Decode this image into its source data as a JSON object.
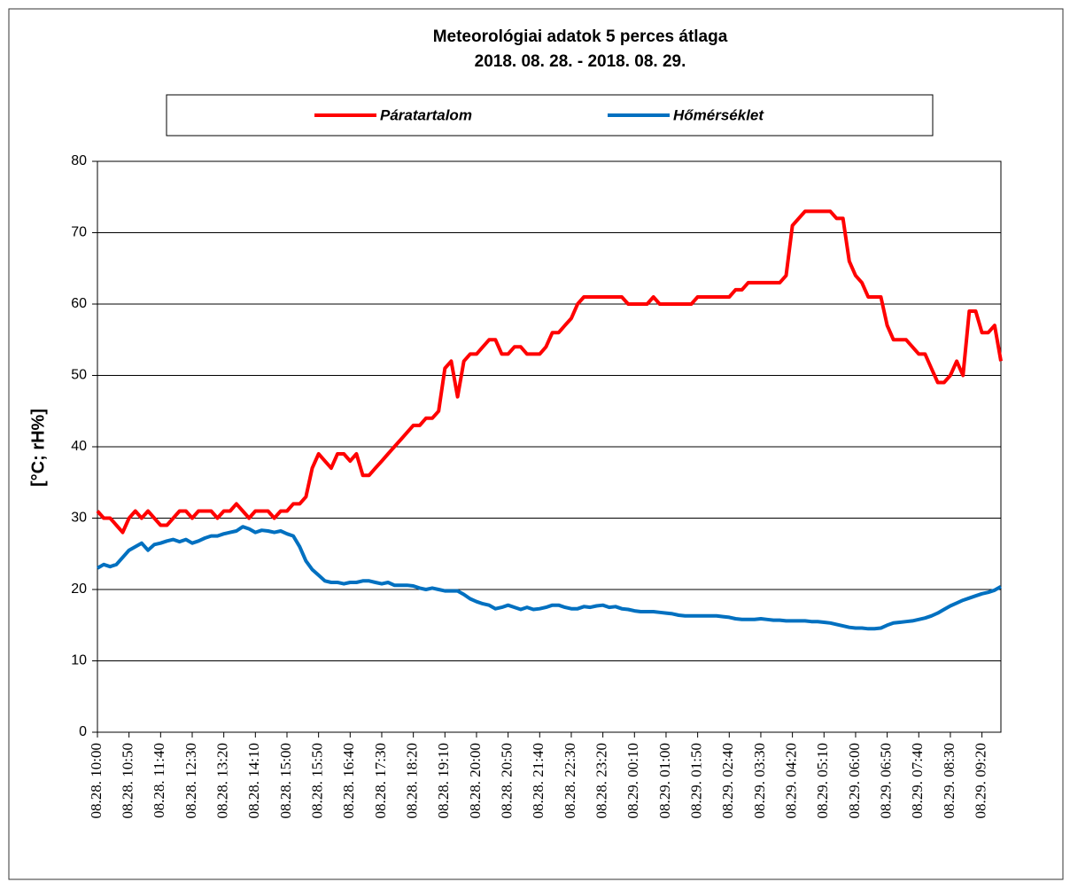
{
  "chart_data": {
    "type": "line",
    "title": "Meteorológiai adatok 5 perces átlaga",
    "subtitle": "2018. 08. 28. - 2018. 08. 29.",
    "y_label": "[°C; rH%]",
    "ylim": [
      0,
      80
    ],
    "yticks": [
      0,
      10,
      20,
      30,
      40,
      50,
      60,
      70,
      80
    ],
    "grid": true,
    "legend": "top",
    "categories": [
      "08.28. 10:00",
      null,
      null,
      null,
      null,
      "08.28. 10:50",
      null,
      null,
      null,
      null,
      "08.28. 11:40",
      null,
      null,
      null,
      null,
      "08.28. 12:30",
      null,
      null,
      null,
      null,
      "08.28. 13:20",
      null,
      null,
      null,
      null,
      "08.28. 14:10",
      null,
      null,
      null,
      null,
      "08.28. 15:00",
      null,
      null,
      null,
      null,
      "08.28. 15:50",
      null,
      null,
      null,
      null,
      "08.28. 16:40",
      null,
      null,
      null,
      null,
      "08.28. 17:30",
      null,
      null,
      null,
      null,
      "08.28. 18:20",
      null,
      null,
      null,
      null,
      "08.28. 19:10",
      null,
      null,
      null,
      null,
      "08.28. 20:00",
      null,
      null,
      null,
      null,
      "08.28. 20:50",
      null,
      null,
      null,
      null,
      "08.28. 21:40",
      null,
      null,
      null,
      null,
      "08.28. 22:30",
      null,
      null,
      null,
      null,
      "08.28. 23:20",
      null,
      null,
      null,
      null,
      "08.29. 00:10",
      null,
      null,
      null,
      null,
      "08.29. 01:00",
      null,
      null,
      null,
      null,
      "08.29. 01:50",
      null,
      null,
      null,
      null,
      "08.29. 02:40",
      null,
      null,
      null,
      null,
      "08.29. 03:30",
      null,
      null,
      null,
      null,
      "08.29. 04:20",
      null,
      null,
      null,
      null,
      "08.29. 05:10",
      null,
      null,
      null,
      null,
      "08.29. 06:00",
      null,
      null,
      null,
      null,
      "08.29. 06:50",
      null,
      null,
      null,
      null,
      "08.29. 07:40",
      null,
      null,
      null,
      null,
      "08.29. 08:30",
      null,
      null,
      null,
      null,
      "08.29. 09:20",
      null,
      null,
      null
    ],
    "series": [
      {
        "name": "Páratartalom",
        "color": "#ff0000",
        "values": [
          31,
          30,
          30,
          29,
          28,
          30,
          31,
          30,
          31,
          30,
          29,
          29,
          30,
          31,
          31,
          30,
          31,
          31,
          31,
          30,
          31,
          31,
          32,
          31,
          30,
          31,
          31,
          31,
          30,
          31,
          31,
          32,
          32,
          33,
          37,
          39,
          38,
          37,
          39,
          39,
          38,
          39,
          36,
          36,
          37,
          38,
          39,
          40,
          41,
          42,
          43,
          43,
          44,
          44,
          45,
          51,
          52,
          47,
          52,
          53,
          53,
          54,
          55,
          55,
          53,
          53,
          54,
          54,
          53,
          53,
          53,
          54,
          56,
          56,
          57,
          58,
          60,
          61,
          61,
          61,
          61,
          61,
          61,
          61,
          60,
          60,
          60,
          60,
          61,
          60,
          60,
          60,
          60,
          60,
          60,
          61,
          61,
          61,
          61,
          61,
          61,
          62,
          62,
          63,
          63,
          63,
          63,
          63,
          63,
          64,
          71,
          72,
          73,
          73,
          73,
          73,
          73,
          72,
          72,
          66,
          64,
          63,
          61,
          61,
          61,
          57,
          55,
          55,
          55,
          54,
          53,
          53,
          51,
          49,
          49,
          50,
          52,
          50,
          59,
          59,
          56,
          56,
          57,
          52
        ]
      },
      {
        "name": "Hőmérséklet",
        "color": "#0070c0",
        "values": [
          23,
          23.5,
          23.2,
          23.5,
          24.5,
          25.5,
          26,
          26.5,
          25.5,
          26.3,
          26.5,
          26.8,
          27,
          26.7,
          27,
          26.5,
          26.8,
          27.2,
          27.5,
          27.5,
          27.8,
          28,
          28.2,
          28.8,
          28.5,
          28,
          28.3,
          28.2,
          28,
          28.2,
          27.8,
          27.5,
          26,
          24,
          22.8,
          22,
          21.2,
          21,
          21,
          20.8,
          21,
          21,
          21.2,
          21.2,
          21,
          20.8,
          21,
          20.6,
          20.6,
          20.6,
          20.5,
          20.2,
          20,
          20.2,
          20,
          19.8,
          19.8,
          19.8,
          19.3,
          18.7,
          18.3,
          18,
          17.8,
          17.3,
          17.5,
          17.8,
          17.5,
          17.2,
          17.5,
          17.2,
          17.3,
          17.5,
          17.8,
          17.8,
          17.5,
          17.3,
          17.3,
          17.6,
          17.5,
          17.7,
          17.8,
          17.5,
          17.6,
          17.3,
          17.2,
          17,
          16.9,
          16.9,
          16.9,
          16.8,
          16.7,
          16.6,
          16.4,
          16.3,
          16.3,
          16.3,
          16.3,
          16.3,
          16.3,
          16.2,
          16.1,
          15.9,
          15.8,
          15.8,
          15.8,
          15.9,
          15.8,
          15.7,
          15.7,
          15.6,
          15.6,
          15.6,
          15.6,
          15.5,
          15.5,
          15.4,
          15.3,
          15.1,
          14.9,
          14.7,
          14.6,
          14.6,
          14.5,
          14.5,
          14.6,
          15,
          15.3,
          15.4,
          15.5,
          15.6,
          15.8,
          16,
          16.3,
          16.7,
          17.2,
          17.7,
          18.1,
          18.5,
          18.8,
          19.1,
          19.4,
          19.6,
          19.9,
          20.4
        ]
      }
    ]
  }
}
